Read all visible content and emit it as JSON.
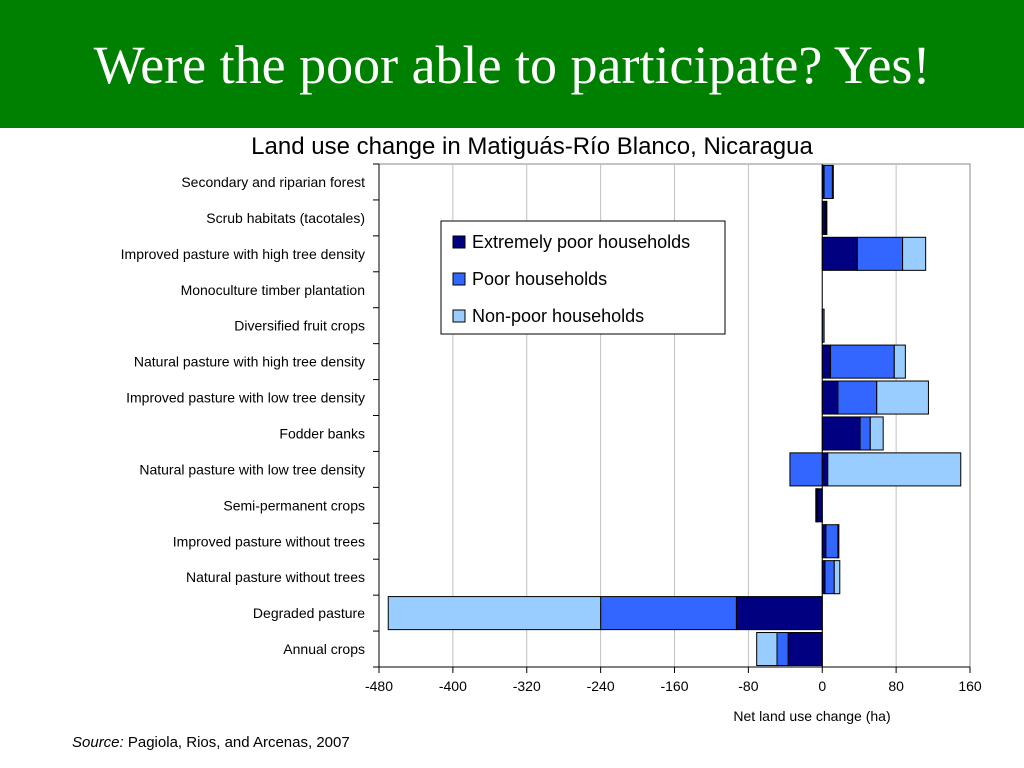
{
  "slide": {
    "title": "Were the poor able to participate? Yes!",
    "source_label": "Source:",
    "source_text": " Pagiola, Rios, and Arcenas, 2007"
  },
  "colors": {
    "title_bar": "#008000",
    "extremely_poor": "#000080",
    "poor": "#3366ff",
    "non_poor": "#99ccff"
  },
  "chart_data": {
    "type": "bar",
    "orientation": "horizontal",
    "stacked": true,
    "title": "Land use change in Matiguás-Río Blanco, Nicaragua",
    "xlabel": "Net land use change (ha)",
    "ylabel": "",
    "xlim": [
      -480,
      160
    ],
    "xticks": [
      -480,
      -400,
      -320,
      -240,
      -160,
      -80,
      0,
      80,
      160
    ],
    "grid": true,
    "legend_position": "upper-center",
    "categories": [
      "Secondary and riparian forest",
      "Scrub habitats (tacotales)",
      "Improved pasture with high tree density",
      "Monoculture timber plantation",
      "Diversified fruit crops",
      "Natural pasture with high tree density",
      "Improved pasture with low tree density",
      "Fodder banks",
      "Natural pasture with low tree density ",
      "Semi-permanent crops",
      "Improved pasture without trees",
      "Natural pasture without trees",
      "Degraded pasture",
      "Annual crops"
    ],
    "series": [
      {
        "name": "Extremely poor households",
        "color": "#000080",
        "values": [
          2,
          3,
          38,
          0,
          0,
          9,
          17,
          41,
          6,
          -5,
          4,
          3,
          -93,
          -37
        ]
      },
      {
        "name": "Poor households",
        "color": "#3366ff",
        "values": [
          9,
          1,
          49,
          0,
          2,
          69,
          42,
          11,
          -35,
          -1,
          13,
          10,
          -147,
          -12
        ]
      },
      {
        "name": "Non-poor households",
        "color": "#99ccff",
        "values": [
          1,
          1,
          25,
          0,
          0,
          12,
          56,
          14,
          144,
          -1,
          1,
          6,
          -230,
          -22
        ]
      }
    ]
  }
}
